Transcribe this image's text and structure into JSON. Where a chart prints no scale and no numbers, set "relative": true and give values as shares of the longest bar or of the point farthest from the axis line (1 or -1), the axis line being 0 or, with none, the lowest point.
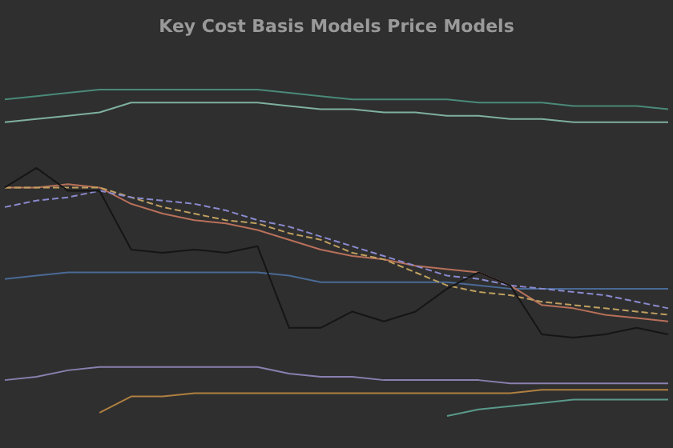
{
  "chart_data": {
    "type": "line",
    "title": "Key Cost Basis Models Price Models",
    "relative": true,
    "grid": false,
    "marker": "none",
    "categories": [
      null,
      null,
      null,
      null,
      null,
      null,
      null,
      null,
      null,
      null,
      null,
      null,
      null,
      null,
      null,
      null,
      null,
      null,
      null,
      null,
      null,
      null
    ],
    "series": [
      {
        "color": "#4a8a78",
        "line_style": "solid",
        "values": [
          0.97,
          0.98,
          0.99,
          1.0,
          1.0,
          1.0,
          1.0,
          1.0,
          1.0,
          0.99,
          0.98,
          0.97,
          0.97,
          0.97,
          0.97,
          0.96,
          0.96,
          0.96,
          0.95,
          0.95,
          0.95,
          0.94
        ]
      },
      {
        "color": "#7fb0a0",
        "line_style": "solid",
        "values": [
          0.9,
          0.91,
          0.92,
          0.93,
          0.96,
          0.96,
          0.96,
          0.96,
          0.96,
          0.95,
          0.94,
          0.94,
          0.93,
          0.93,
          0.92,
          0.92,
          0.91,
          0.91,
          0.9,
          0.9,
          0.9,
          0.9
        ]
      },
      {
        "color": "#4a6a96",
        "line_style": "solid",
        "values": [
          0.42,
          0.43,
          0.44,
          0.44,
          0.44,
          0.44,
          0.44,
          0.44,
          0.44,
          0.43,
          0.41,
          0.41,
          0.41,
          0.41,
          0.41,
          0.4,
          0.39,
          0.39,
          0.39,
          0.39,
          0.39,
          0.39
        ]
      },
      {
        "color": "#8a80b0",
        "line_style": "solid",
        "values": [
          0.11,
          0.12,
          0.14,
          0.15,
          0.15,
          0.15,
          0.15,
          0.15,
          0.15,
          0.13,
          0.12,
          0.12,
          0.11,
          0.11,
          0.11,
          0.11,
          0.1,
          0.1,
          0.1,
          0.1,
          0.1,
          0.1
        ]
      },
      {
        "color": "#b08040",
        "line_style": "solid",
        "values": [
          null,
          null,
          null,
          0.01,
          0.06,
          0.06,
          0.07,
          0.07,
          0.07,
          0.07,
          0.07,
          0.07,
          0.07,
          0.07,
          0.07,
          0.07,
          0.07,
          0.08,
          0.08,
          0.08,
          0.08,
          0.08
        ]
      },
      {
        "color": "#5a9a8a",
        "line_style": "solid",
        "values": [
          null,
          null,
          null,
          null,
          null,
          null,
          null,
          null,
          null,
          null,
          null,
          null,
          null,
          null,
          0.0,
          0.02,
          0.03,
          0.04,
          0.05,
          0.05,
          0.05,
          0.05
        ]
      },
      {
        "color": "#b8705a",
        "line_style": "solid",
        "values": [
          0.7,
          0.7,
          0.71,
          0.7,
          0.65,
          0.62,
          0.6,
          0.59,
          0.57,
          0.54,
          0.51,
          0.49,
          0.48,
          0.46,
          0.45,
          0.44,
          0.4,
          0.34,
          0.33,
          0.31,
          0.3,
          0.29
        ]
      },
      {
        "color": "#c0a060",
        "line_style": "dashed",
        "values": [
          0.7,
          0.7,
          0.7,
          0.7,
          0.67,
          0.64,
          0.62,
          0.6,
          0.59,
          0.56,
          0.54,
          0.5,
          0.48,
          0.44,
          0.4,
          0.38,
          0.37,
          0.35,
          0.34,
          0.33,
          0.32,
          0.31
        ]
      },
      {
        "color": "#8a8ad0",
        "line_style": "dashed",
        "values": [
          0.64,
          0.66,
          0.67,
          0.69,
          0.67,
          0.66,
          0.65,
          0.63,
          0.6,
          0.58,
          0.55,
          0.52,
          0.49,
          0.46,
          0.43,
          0.42,
          0.4,
          0.39,
          0.38,
          0.37,
          0.35,
          0.33
        ]
      },
      {
        "color": "#151515",
        "line_style": "solid",
        "values": [
          0.7,
          0.76,
          0.69,
          0.69,
          0.51,
          0.5,
          0.51,
          0.5,
          0.52,
          0.27,
          0.27,
          0.32,
          0.29,
          0.32,
          0.39,
          0.44,
          0.4,
          0.25,
          0.24,
          0.25,
          0.27,
          0.25
        ]
      }
    ]
  }
}
